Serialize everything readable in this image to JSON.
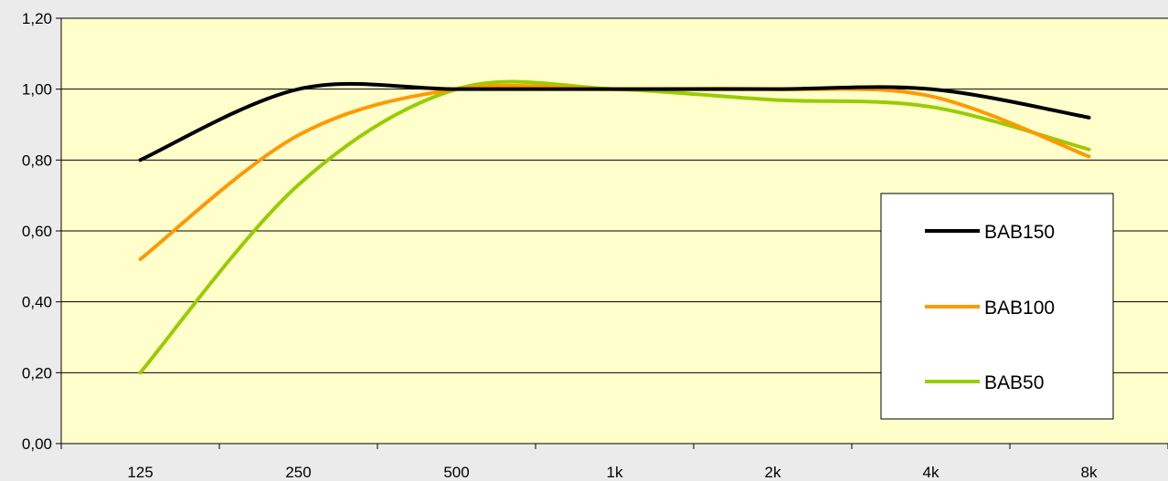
{
  "chart_data": {
    "type": "line",
    "title": "",
    "xlabel": "",
    "ylabel": "",
    "categories": [
      "125",
      "250",
      "500",
      "1k",
      "2k",
      "4k",
      "8k"
    ],
    "ylim": [
      0,
      1.2
    ],
    "yticks": [
      "0,00",
      "0,20",
      "0,40",
      "0,60",
      "0,80",
      "1,00",
      "1,20"
    ],
    "grid": true,
    "legend_position": "right",
    "plot_background": "#ffffcc",
    "series": [
      {
        "name": "BAB150",
        "color": "#000000",
        "values": [
          0.8,
          1.0,
          1.0,
          1.0,
          1.0,
          1.0,
          0.92
        ]
      },
      {
        "name": "BAB100",
        "color": "#ff9900",
        "values": [
          0.52,
          0.87,
          1.0,
          1.0,
          1.0,
          0.98,
          0.81
        ]
      },
      {
        "name": "BAB50",
        "color": "#99cc00",
        "values": [
          0.2,
          0.73,
          1.0,
          1.0,
          0.97,
          0.95,
          0.83
        ]
      }
    ]
  }
}
